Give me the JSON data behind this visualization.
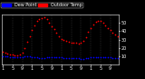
{
  "temp_color": "#ff0000",
  "dew_color": "#0000ff",
  "legend_temp_label": "Outdoor Temp",
  "legend_dew_label": "Dew Point",
  "bg_color": "#000000",
  "plot_bg": "#000000",
  "grid_color": "#555555",
  "temp_x": [
    0,
    1,
    2,
    3,
    4,
    5,
    6,
    7,
    8,
    9,
    10,
    11,
    12,
    13,
    14,
    15,
    16,
    17,
    18,
    19,
    20,
    21,
    22,
    23,
    24,
    25,
    26,
    27,
    28,
    29,
    30,
    31,
    32,
    33,
    34,
    35,
    36,
    37,
    38,
    39,
    40,
    41,
    42,
    43,
    44,
    45,
    46,
    47
  ],
  "temp_y": [
    15,
    14,
    13,
    12,
    12,
    11,
    11,
    12,
    14,
    20,
    27,
    34,
    41,
    47,
    52,
    54,
    55,
    56,
    54,
    50,
    46,
    42,
    38,
    34,
    31,
    29,
    28,
    27,
    26,
    26,
    26,
    25,
    26,
    28,
    33,
    39,
    44,
    48,
    51,
    52,
    52,
    50,
    47,
    44,
    41,
    38,
    36,
    34
  ],
  "dew_x": [
    0,
    1,
    2,
    3,
    4,
    5,
    6,
    7,
    8,
    9,
    10,
    11,
    12,
    13,
    14,
    15,
    16,
    17,
    18,
    19,
    20,
    21,
    22,
    23,
    24,
    25,
    26,
    27,
    28,
    29,
    30,
    31,
    32,
    33,
    34,
    35,
    36,
    37,
    38,
    39,
    40,
    41,
    42,
    43,
    44,
    45,
    46,
    47
  ],
  "dew_y": [
    10,
    10,
    10,
    9,
    9,
    9,
    9,
    9,
    9,
    10,
    10,
    10,
    9,
    9,
    9,
    8,
    8,
    8,
    9,
    9,
    9,
    9,
    9,
    9,
    9,
    8,
    8,
    8,
    8,
    8,
    8,
    8,
    7,
    7,
    8,
    8,
    9,
    9,
    9,
    9,
    9,
    9,
    9,
    9,
    9,
    8,
    8,
    8
  ],
  "ylim": [
    0,
    60
  ],
  "ytick_values": [
    10,
    20,
    30,
    40,
    50
  ],
  "xlim": [
    -0.5,
    47.5
  ],
  "xtick_positions": [
    0,
    4,
    8,
    12,
    16,
    20,
    24,
    28,
    32,
    36,
    40,
    44
  ],
  "xtick_labels": [
    "1",
    "5",
    "9",
    "1",
    "5",
    "9",
    "1",
    "5",
    "9",
    "1",
    "5",
    "9"
  ],
  "vgrid_positions": [
    4,
    8,
    12,
    16,
    20,
    24,
    28,
    32,
    36,
    40,
    44
  ],
  "marker_size": 1.5,
  "tick_fontsize": 3.5,
  "legend_fontsize": 3.5,
  "text_color": "#ffffff"
}
